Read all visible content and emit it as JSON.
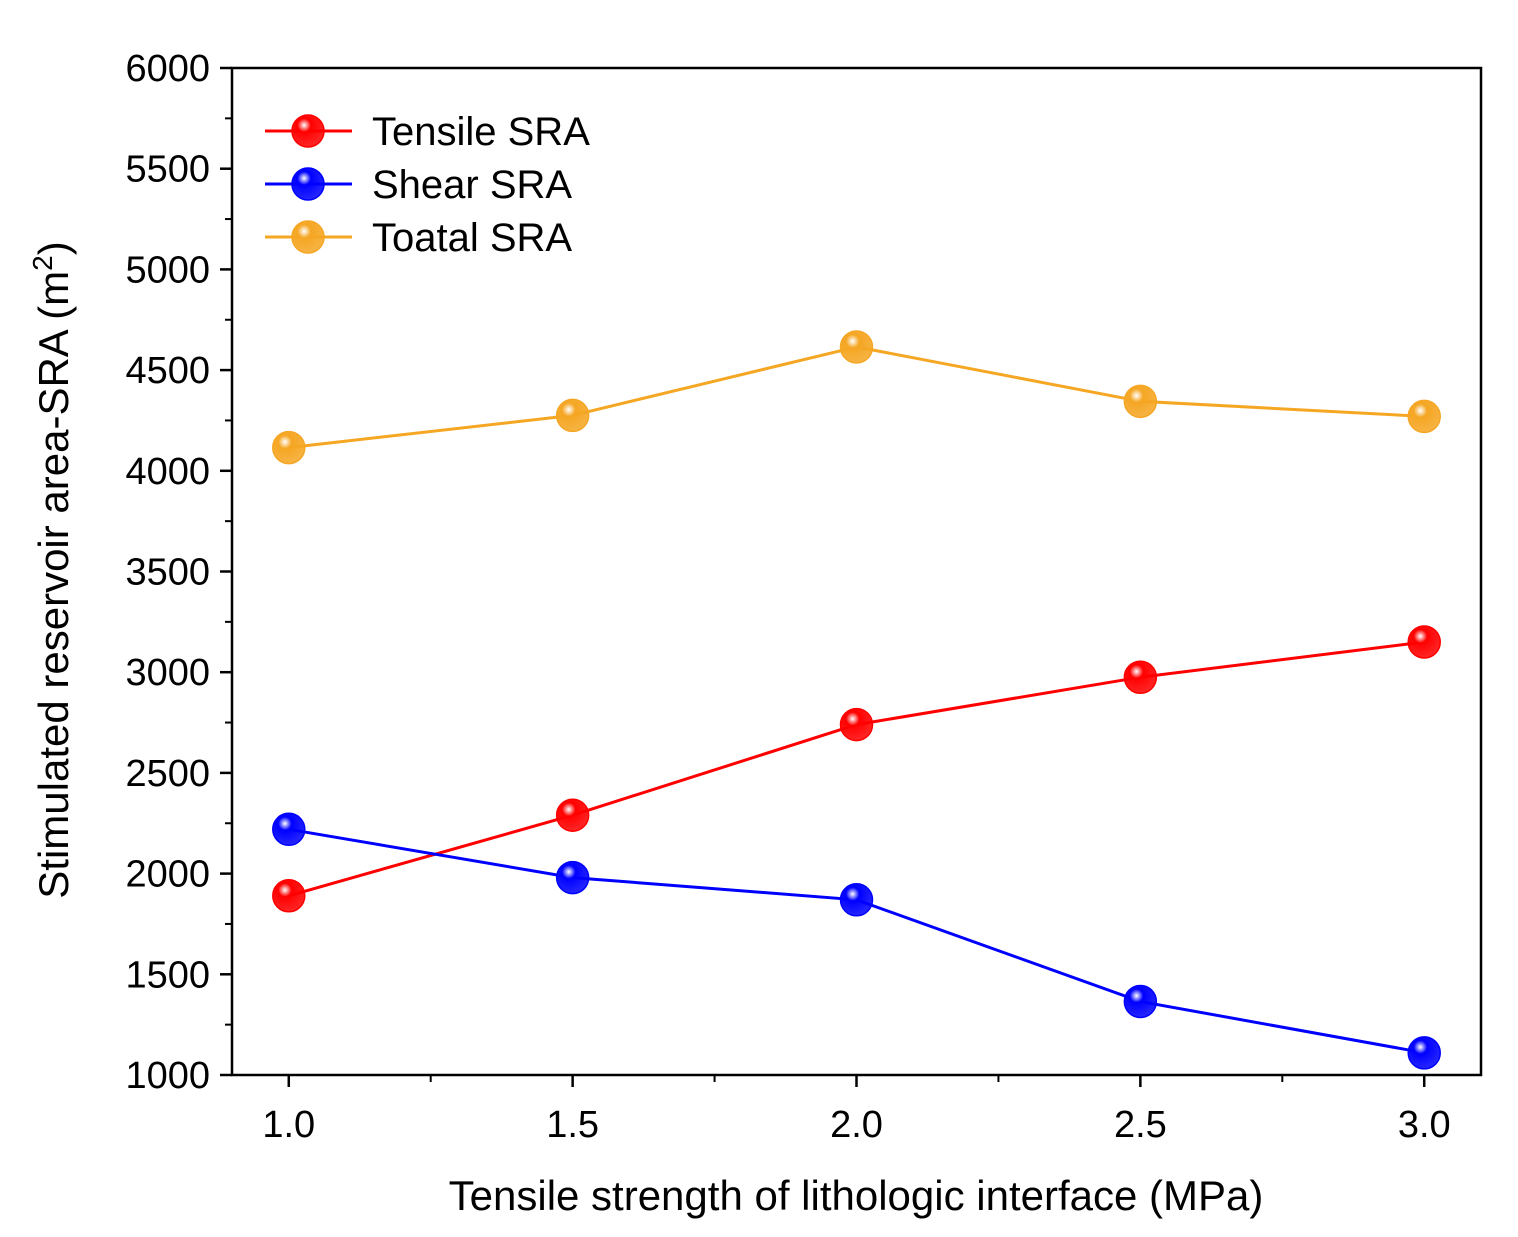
{
  "chart_data": {
    "type": "line",
    "title": "",
    "xlabel": "Tensile strength of lithologic interface (MPa)",
    "ylabel_main": "Stimulated reservoir area-SRA (m",
    "ylabel_sup": "2",
    "ylabel_close": ")",
    "xlim": [
      0.9,
      3.1
    ],
    "ylim": [
      1000,
      6000
    ],
    "xticks": [
      "1.0",
      "1.5",
      "2.0",
      "2.5",
      "3.0"
    ],
    "yticks": [
      "1000",
      "1500",
      "2000",
      "2500",
      "3000",
      "3500",
      "4000",
      "4500",
      "5000",
      "5500",
      "6000"
    ],
    "grid": false,
    "legend_position": "top-left",
    "x": [
      1.0,
      1.5,
      2.0,
      2.5,
      3.0
    ],
    "series": [
      {
        "name": "Tensile SRA",
        "color": "#ff0000",
        "values": [
          1890,
          2290,
          2740,
          2975,
          3150
        ]
      },
      {
        "name": "Shear SRA",
        "color": "#0000ff",
        "values": [
          2220,
          1980,
          1870,
          1365,
          1110
        ]
      },
      {
        "name": "Toatal SRA",
        "color": "#f5a623",
        "values": [
          4115,
          4275,
          4615,
          4345,
          4270
        ]
      }
    ]
  }
}
